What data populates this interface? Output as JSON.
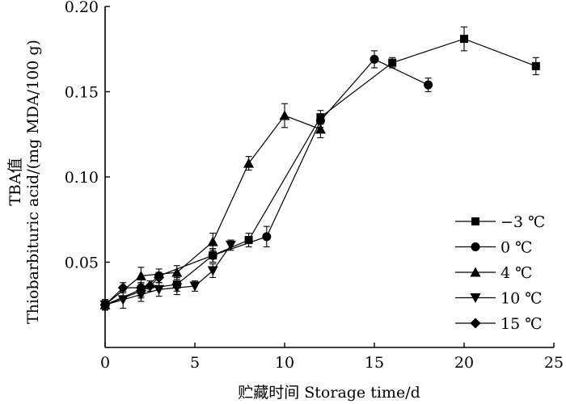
{
  "chart_data": {
    "type": "line",
    "xlabel": "贮藏时间 Storage time/d",
    "ylabel_line1": "TBA值",
    "ylabel_line2": "Thiobarbituric acid/(mg MDA/100 g)",
    "xlim": [
      0,
      25
    ],
    "ylim": [
      0,
      0.2
    ],
    "xticks": [
      0,
      5,
      10,
      15,
      20,
      25
    ],
    "xtick_labels": [
      "0",
      "5",
      "10",
      "15",
      "20",
      "25"
    ],
    "yticks": [
      0.05,
      0.1,
      0.15,
      0.2
    ],
    "ytick_labels": [
      "0.05",
      "0.10",
      "0.15",
      "0.20"
    ],
    "legend_position": "bottom-right",
    "series": [
      {
        "name": "−3 ℃",
        "marker": "square",
        "points": [
          {
            "x": 0,
            "y": 0.025,
            "err": 0.003
          },
          {
            "x": 2,
            "y": 0.034,
            "err": 0.004
          },
          {
            "x": 4,
            "y": 0.037,
            "err": 0.004
          },
          {
            "x": 6,
            "y": 0.054,
            "err": 0.004
          },
          {
            "x": 8,
            "y": 0.063,
            "err": 0.004
          },
          {
            "x": 12,
            "y": 0.135,
            "err": 0.004
          },
          {
            "x": 16,
            "y": 0.167,
            "err": 0.003
          },
          {
            "x": 20,
            "y": 0.181,
            "err": 0.007
          },
          {
            "x": 24,
            "y": 0.165,
            "err": 0.005
          }
        ]
      },
      {
        "name": "0 ℃",
        "marker": "circle",
        "points": [
          {
            "x": 0,
            "y": 0.025,
            "err": 0.003
          },
          {
            "x": 2,
            "y": 0.033,
            "err": 0.004
          },
          {
            "x": 3,
            "y": 0.042,
            "err": 0.004
          },
          {
            "x": 6,
            "y": 0.054,
            "err": 0.004
          },
          {
            "x": 9,
            "y": 0.065,
            "err": 0.006
          },
          {
            "x": 12,
            "y": 0.133,
            "err": 0.004
          },
          {
            "x": 15,
            "y": 0.169,
            "err": 0.005
          },
          {
            "x": 18,
            "y": 0.154,
            "err": 0.004
          }
        ]
      },
      {
        "name": "4 ℃",
        "marker": "triangle-up",
        "points": [
          {
            "x": 0,
            "y": 0.025,
            "err": 0.003
          },
          {
            "x": 2,
            "y": 0.042,
            "err": 0.005
          },
          {
            "x": 4,
            "y": 0.044,
            "err": 0.004
          },
          {
            "x": 6,
            "y": 0.062,
            "err": 0.005
          },
          {
            "x": 8,
            "y": 0.108,
            "err": 0.004
          },
          {
            "x": 10,
            "y": 0.136,
            "err": 0.007
          },
          {
            "x": 12,
            "y": 0.128,
            "err": 0.005
          }
        ]
      },
      {
        "name": "10 ℃",
        "marker": "triangle-down",
        "points": [
          {
            "x": 0,
            "y": 0.025,
            "err": 0.003
          },
          {
            "x": 1,
            "y": 0.028,
            "err": 0.005
          },
          {
            "x": 2,
            "y": 0.031,
            "err": 0.004
          },
          {
            "x": 3,
            "y": 0.034,
            "err": 0.004
          },
          {
            "x": 4,
            "y": 0.035,
            "err": 0.004
          },
          {
            "x": 5,
            "y": 0.036,
            "err": 0.003
          },
          {
            "x": 6,
            "y": 0.045,
            "err": 0.004
          },
          {
            "x": 7,
            "y": 0.06,
            "err": 0.003
          }
        ]
      },
      {
        "name": "15 ℃",
        "marker": "diamond",
        "points": [
          {
            "x": 0,
            "y": 0.025,
            "err": 0.003
          },
          {
            "x": 1,
            "y": 0.035,
            "err": 0.003
          },
          {
            "x": 2,
            "y": 0.035,
            "err": 0.003
          },
          {
            "x": 2.5,
            "y": 0.036,
            "err": 0.003
          },
          {
            "x": 3,
            "y": 0.041,
            "err": 0.003
          }
        ]
      }
    ]
  }
}
